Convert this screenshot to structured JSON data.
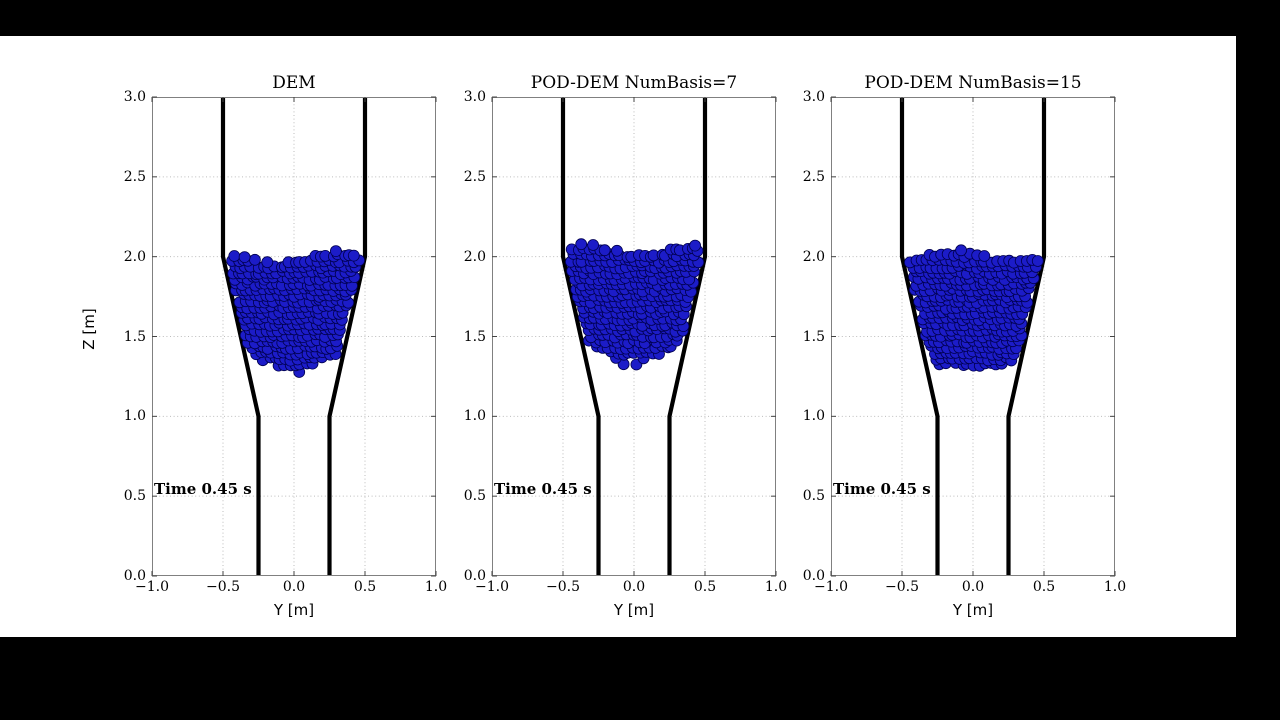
{
  "frame": {
    "bg": "#000000",
    "figure_bg": "#ffffff"
  },
  "style": {
    "spine_color": "#808080",
    "tick_color": "#444444",
    "grid_color": "#bdbdbd",
    "wall_color": "#000000",
    "particle_fill": "#1c1cc8",
    "particle_edge": "#000050"
  },
  "chart_data": [
    {
      "type": "scatter",
      "title": "DEM",
      "xlabel": "Y [m]",
      "ylabel": "Z [m]",
      "annotation": "Time 0.45 s",
      "xlim": [
        -1.0,
        1.0
      ],
      "ylim": [
        0.0,
        3.0
      ],
      "xticks": [
        -1.0,
        -0.5,
        0.0,
        0.5,
        1.0
      ],
      "xtick_labels": [
        "−1.0",
        "−0.5",
        "0.0",
        "0.5",
        "1.0"
      ],
      "yticks": [
        0.0,
        0.5,
        1.0,
        1.5,
        2.0,
        2.5,
        3.0
      ],
      "ytick_labels": [
        "0.0",
        "0.5",
        "1.0",
        "1.5",
        "2.0",
        "2.5",
        "3.0"
      ],
      "grid": true,
      "hopper_walls": {
        "left": [
          [
            -0.5,
            3.0
          ],
          [
            -0.5,
            2.0
          ],
          [
            -0.25,
            1.0
          ],
          [
            -0.25,
            0.0
          ]
        ],
        "right": [
          [
            0.5,
            3.0
          ],
          [
            0.5,
            2.0
          ],
          [
            0.25,
            1.0
          ],
          [
            0.25,
            0.0
          ]
        ]
      },
      "particles": {
        "seed": 7,
        "approx_count": 420,
        "radius_m": 0.0195,
        "z_top": 2.0,
        "top_wave": 0.035,
        "z_bottom_center": 1.3,
        "z_bottom_wall": 1.47
      }
    },
    {
      "type": "scatter",
      "title": "POD-DEM NumBasis=7",
      "xlabel": "Y [m]",
      "ylabel": "",
      "annotation": "Time 0.45 s",
      "xlim": [
        -1.0,
        1.0
      ],
      "ylim": [
        0.0,
        3.0
      ],
      "xticks": [
        -1.0,
        -0.5,
        0.0,
        0.5,
        1.0
      ],
      "xtick_labels": [
        "−1.0",
        "−0.5",
        "0.0",
        "0.5",
        "1.0"
      ],
      "yticks": [
        0.0,
        0.5,
        1.0,
        1.5,
        2.0,
        2.5,
        3.0
      ],
      "ytick_labels": [
        "0.0",
        "0.5",
        "1.0",
        "1.5",
        "2.0",
        "2.5",
        "3.0"
      ],
      "grid": true,
      "hopper_walls": {
        "left": [
          [
            -0.5,
            3.0
          ],
          [
            -0.5,
            2.0
          ],
          [
            -0.25,
            1.0
          ],
          [
            -0.25,
            0.0
          ]
        ],
        "right": [
          [
            0.5,
            3.0
          ],
          [
            0.5,
            2.0
          ],
          [
            0.25,
            1.0
          ],
          [
            0.25,
            0.0
          ]
        ]
      },
      "particles": {
        "seed": 21,
        "approx_count": 420,
        "radius_m": 0.0195,
        "z_top": 2.05,
        "top_wave": 0.03,
        "z_bottom_center": 1.37,
        "z_bottom_wall": 1.48
      }
    },
    {
      "type": "scatter",
      "title": "POD-DEM NumBasis=15",
      "xlabel": "Y [m]",
      "ylabel": "",
      "annotation": "Time 0.45 s",
      "xlim": [
        -1.0,
        1.0
      ],
      "ylim": [
        0.0,
        3.0
      ],
      "xticks": [
        -1.0,
        -0.5,
        0.0,
        0.5,
        1.0
      ],
      "xtick_labels": [
        "−1.0",
        "−0.5",
        "0.0",
        "0.5",
        "1.0"
      ],
      "yticks": [
        0.0,
        0.5,
        1.0,
        1.5,
        2.0,
        2.5,
        3.0
      ],
      "ytick_labels": [
        "0.0",
        "0.5",
        "1.0",
        "1.5",
        "2.0",
        "2.5",
        "3.0"
      ],
      "grid": true,
      "hopper_walls": {
        "left": [
          [
            -0.5,
            3.0
          ],
          [
            -0.5,
            2.0
          ],
          [
            -0.25,
            1.0
          ],
          [
            -0.25,
            0.0
          ]
        ],
        "right": [
          [
            0.5,
            3.0
          ],
          [
            0.5,
            2.0
          ],
          [
            0.25,
            1.0
          ],
          [
            0.25,
            0.0
          ]
        ]
      },
      "particles": {
        "seed": 42,
        "approx_count": 420,
        "radius_m": 0.0195,
        "z_top": 2.01,
        "top_wave": 0.035,
        "z_bottom_center": 1.3,
        "z_bottom_wall": 1.45
      }
    }
  ]
}
